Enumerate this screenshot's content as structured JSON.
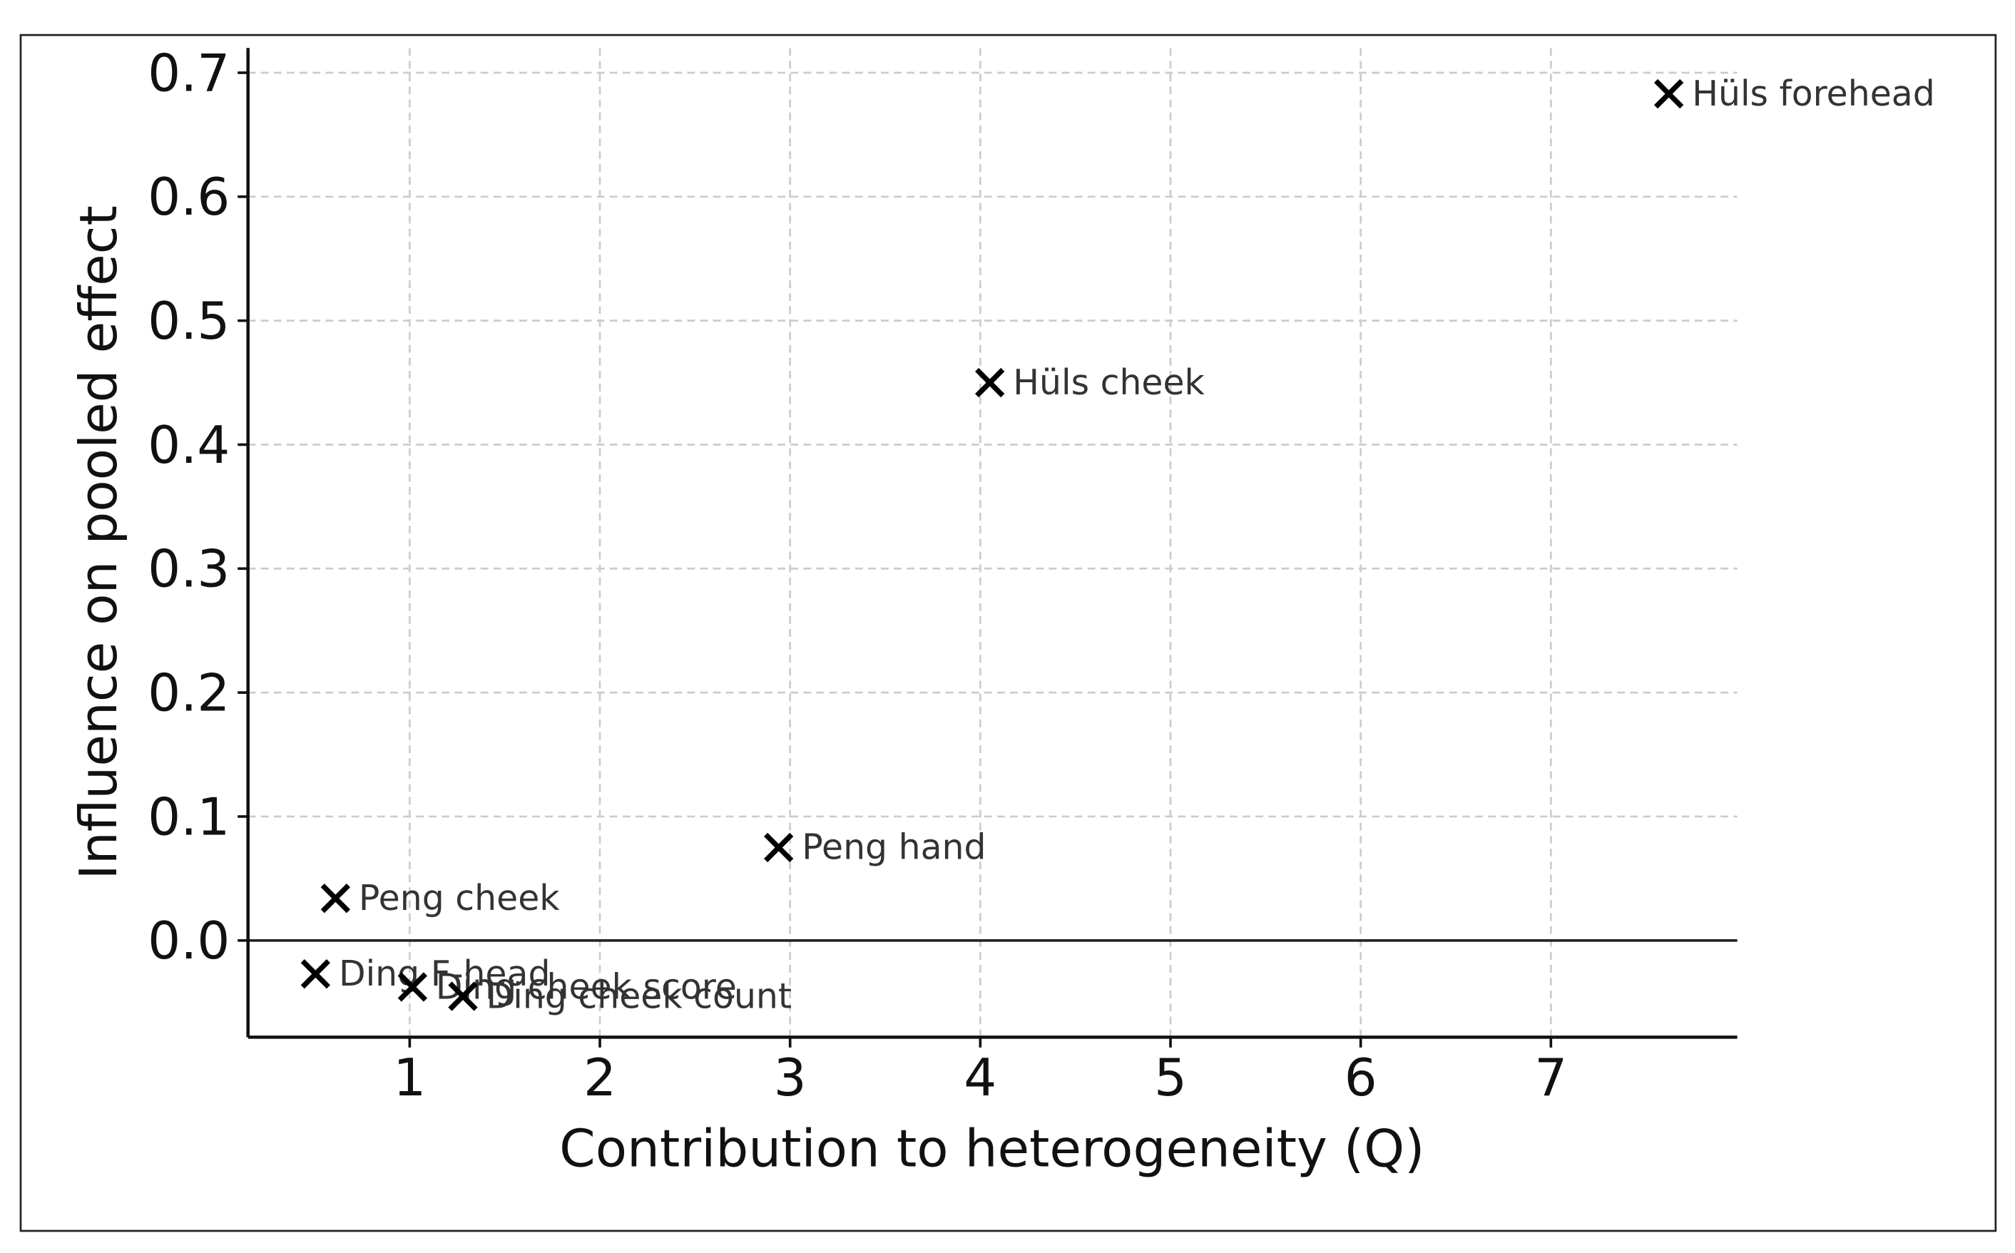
{
  "chart_data": {
    "type": "scatter",
    "xlabel": "Contribution to heterogeneity (Q)",
    "ylabel": "Influence on pooled effect",
    "x": [
      7.62,
      4.05,
      2.94,
      0.61,
      0.505,
      1.015,
      1.28
    ],
    "y": [
      0.683,
      0.45,
      0.075,
      0.034,
      -0.027,
      -0.0375,
      -0.045
    ],
    "point_labels": [
      "Hüls forehead",
      "Hüls cheek",
      "Peng hand",
      "Peng cheek",
      "Ding F-head",
      "Ding cheek score",
      "Ding cheek count"
    ],
    "marker": "x",
    "color": "#000000",
    "xlim": [
      0.15,
      7.98
    ],
    "ylim": [
      -0.078,
      0.72
    ],
    "xticks": [
      1,
      2,
      3,
      4,
      5,
      6,
      7
    ],
    "yticks": [
      {
        "value": 0,
        "label": "0.0"
      },
      0.1,
      0.2,
      0.3,
      0.4,
      0.5,
      0.6,
      0.7
    ],
    "grid": true,
    "zero_line": true
  }
}
